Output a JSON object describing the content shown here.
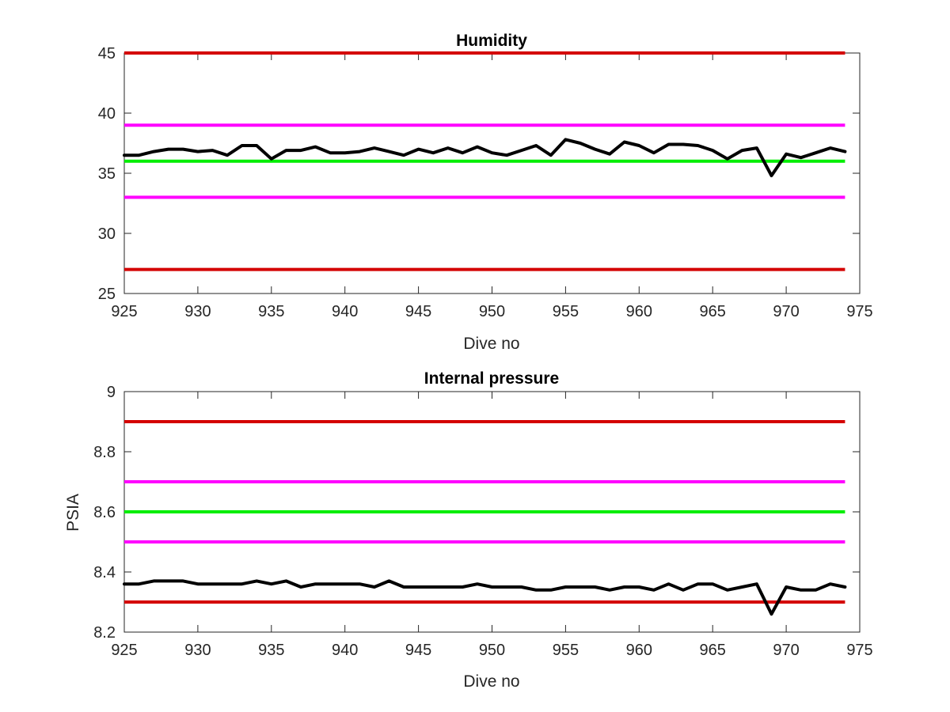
{
  "chart_data": [
    {
      "type": "line",
      "title": "Humidity",
      "xlabel": "Dive no",
      "ylabel": "",
      "xlim": [
        925,
        975
      ],
      "ylim": [
        25,
        45
      ],
      "xticks": [
        925,
        930,
        935,
        940,
        945,
        950,
        955,
        960,
        965,
        970,
        975
      ],
      "yticks": [
        25,
        30,
        35,
        40,
        45
      ],
      "grid": false,
      "thresholds": [
        {
          "value": 45,
          "color": "#d40000"
        },
        {
          "value": 39,
          "color": "#ff00ff"
        },
        {
          "value": 36,
          "color": "#00ee00"
        },
        {
          "value": 33,
          "color": "#ff00ff"
        },
        {
          "value": 27,
          "color": "#d40000"
        }
      ],
      "threshold_range": [
        925,
        974
      ],
      "series": [
        {
          "color": "#000000",
          "x": [
            925,
            926,
            927,
            928,
            929,
            930,
            931,
            932,
            933,
            934,
            935,
            936,
            937,
            938,
            939,
            940,
            941,
            942,
            943,
            944,
            945,
            946,
            947,
            948,
            949,
            950,
            951,
            952,
            953,
            954,
            955,
            956,
            957,
            958,
            959,
            960,
            961,
            962,
            963,
            964,
            965,
            966,
            967,
            968,
            969,
            970,
            971,
            972,
            973,
            974
          ],
          "y": [
            36.5,
            36.5,
            36.8,
            37.0,
            37.0,
            36.8,
            36.9,
            36.5,
            37.3,
            37.3,
            36.2,
            36.9,
            36.9,
            37.2,
            36.7,
            36.7,
            36.8,
            37.1,
            36.8,
            36.5,
            37.0,
            36.7,
            37.1,
            36.7,
            37.2,
            36.7,
            36.5,
            36.9,
            37.3,
            36.5,
            37.8,
            37.5,
            37.0,
            36.6,
            37.6,
            37.3,
            36.7,
            37.4,
            37.4,
            37.3,
            36.9,
            36.2,
            36.9,
            37.1,
            34.8,
            36.6,
            36.3,
            36.7,
            37.1,
            36.8
          ]
        }
      ]
    },
    {
      "type": "line",
      "title": "Internal pressure",
      "xlabel": "Dive no",
      "ylabel": "PSIA",
      "xlim": [
        925,
        975
      ],
      "ylim": [
        8.2,
        9.0
      ],
      "xticks": [
        925,
        930,
        935,
        940,
        945,
        950,
        955,
        960,
        965,
        970,
        975
      ],
      "yticks": [
        8.2,
        8.4,
        8.6,
        8.8,
        9.0
      ],
      "ytick_labels": [
        "8.2",
        "8.4",
        "8.6",
        "8.8",
        "9"
      ],
      "grid": false,
      "thresholds": [
        {
          "value": 8.9,
          "color": "#d40000"
        },
        {
          "value": 8.7,
          "color": "#ff00ff"
        },
        {
          "value": 8.6,
          "color": "#00ee00"
        },
        {
          "value": 8.5,
          "color": "#ff00ff"
        },
        {
          "value": 8.3,
          "color": "#d40000"
        }
      ],
      "threshold_range": [
        925,
        974
      ],
      "series": [
        {
          "color": "#000000",
          "x": [
            925,
            926,
            927,
            928,
            929,
            930,
            931,
            932,
            933,
            934,
            935,
            936,
            937,
            938,
            939,
            940,
            941,
            942,
            943,
            944,
            945,
            946,
            947,
            948,
            949,
            950,
            951,
            952,
            953,
            954,
            955,
            956,
            957,
            958,
            959,
            960,
            961,
            962,
            963,
            964,
            965,
            966,
            967,
            968,
            969,
            970,
            971,
            972,
            973,
            974
          ],
          "y": [
            8.36,
            8.36,
            8.37,
            8.37,
            8.37,
            8.36,
            8.36,
            8.36,
            8.36,
            8.37,
            8.36,
            8.37,
            8.35,
            8.36,
            8.36,
            8.36,
            8.36,
            8.35,
            8.37,
            8.35,
            8.35,
            8.35,
            8.35,
            8.35,
            8.36,
            8.35,
            8.35,
            8.35,
            8.34,
            8.34,
            8.35,
            8.35,
            8.35,
            8.34,
            8.35,
            8.35,
            8.34,
            8.36,
            8.34,
            8.36,
            8.36,
            8.34,
            8.35,
            8.36,
            8.26,
            8.35,
            8.34,
            8.34,
            8.36,
            8.35
          ]
        }
      ]
    }
  ]
}
